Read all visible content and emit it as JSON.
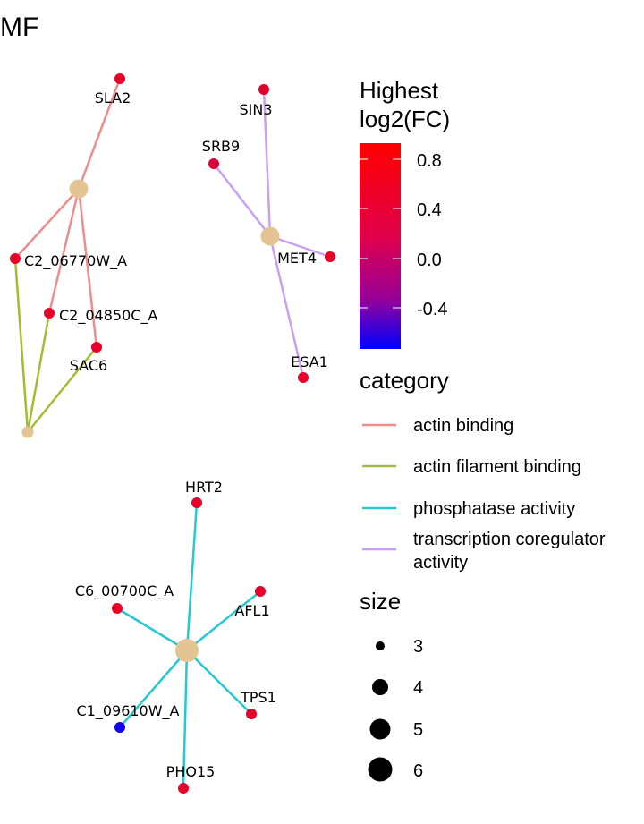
{
  "title": "MF",
  "categories": [
    {
      "key": "actin_binding",
      "label": "actin binding",
      "color": "#F08C8C"
    },
    {
      "key": "actin_filament_binding",
      "label": "actin filament binding",
      "color": "#A0BE32"
    },
    {
      "key": "phosphatase_activity",
      "label": "phosphatase activity",
      "color": "#28C8D2"
    },
    {
      "key": "transcription_coregulator_activity",
      "label_lines": [
        "transcription coregulator",
        "activity"
      ],
      "color": "#C8A0F5"
    }
  ],
  "colorbar": {
    "title_lines": [
      "Highest",
      "log2(FC)"
    ],
    "ticks": [
      "0.8",
      "0.4",
      "0.0",
      "-0.4"
    ],
    "color_high": "#FF0000",
    "color_low": "#0000FF"
  },
  "size_legend": {
    "title": "size",
    "values": [
      "3",
      "4",
      "5",
      "6"
    ]
  },
  "legend_titles": {
    "category": "category"
  },
  "category_hub_color": "#E5C494",
  "genes": [
    {
      "id": "SLA2",
      "label": "SLA2",
      "color": "#E8002A"
    },
    {
      "id": "C2_06770W_A",
      "label": "C2_06770W_A",
      "color": "#E8002A"
    },
    {
      "id": "C2_04850C_A",
      "label": "C2_04850C_A",
      "color": "#E8002A"
    },
    {
      "id": "SAC6",
      "label": "SAC6",
      "color": "#E8002A"
    },
    {
      "id": "SIN3",
      "label": "SIN3",
      "color": "#E0002E"
    },
    {
      "id": "SRB9",
      "label": "SRB9",
      "color": "#DC0038"
    },
    {
      "id": "MET4",
      "label": "MET4",
      "color": "#E8002A"
    },
    {
      "id": "ESA1",
      "label": "ESA1",
      "color": "#E8002A"
    },
    {
      "id": "HRT2",
      "label": "HRT2",
      "color": "#E8002A"
    },
    {
      "id": "C6_00700C_A",
      "label": "C6_00700C_A",
      "color": "#E8002A"
    },
    {
      "id": "AFL1",
      "label": "AFL1",
      "color": "#E8002A"
    },
    {
      "id": "C1_09610W_A",
      "label": "C1_09610W_A",
      "color": "#1400F0"
    },
    {
      "id": "TPS1",
      "label": "TPS1",
      "color": "#E8002A"
    },
    {
      "id": "PHO15",
      "label": "PHO15",
      "color": "#E8002A"
    }
  ]
}
